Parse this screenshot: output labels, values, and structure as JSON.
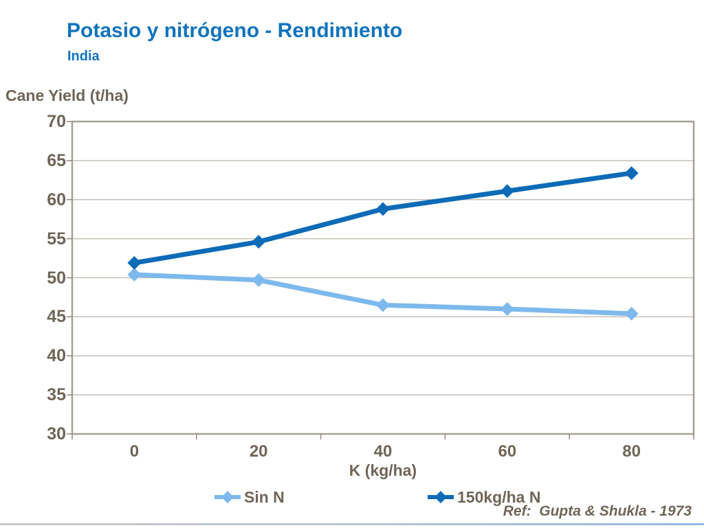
{
  "page": {
    "title": "Potasio y nitrógeno - Rendimiento",
    "subtitle": "India",
    "ref_note": "Ref:  Gupta & Shukla - 1973"
  },
  "colors": {
    "title_blue": "#1173bd",
    "axis_text": "#6f6557",
    "gridline": "#c5c1b8",
    "plot_border": "#a5a096",
    "tick_mark": "#8f897d",
    "series_sin_n": "#7db9ec",
    "series_150n": "#0d6bb7"
  },
  "chart_data": {
    "type": "line",
    "title": "Potasio y nitrógeno - Rendimiento (India)",
    "ylabel": "Cane Yield (t/ha)",
    "xlabel": "K (kg/ha)",
    "categories": [
      "0",
      "20",
      "40",
      "60",
      "80"
    ],
    "series": [
      {
        "name": "Sin N",
        "color_key": "series_sin_n",
        "values": [
          50.4,
          49.7,
          46.5,
          46.0,
          45.4
        ]
      },
      {
        "name": "150kg/ha N",
        "color_key": "series_150n",
        "values": [
          51.9,
          54.6,
          58.8,
          61.1,
          63.4
        ]
      }
    ],
    "ylim": [
      30,
      70
    ],
    "ytick_step": 5,
    "yticks": [
      30,
      35,
      40,
      45,
      50,
      55,
      60,
      65,
      70
    ],
    "grid": true,
    "legend_position": "bottom",
    "marker": "diamond"
  }
}
